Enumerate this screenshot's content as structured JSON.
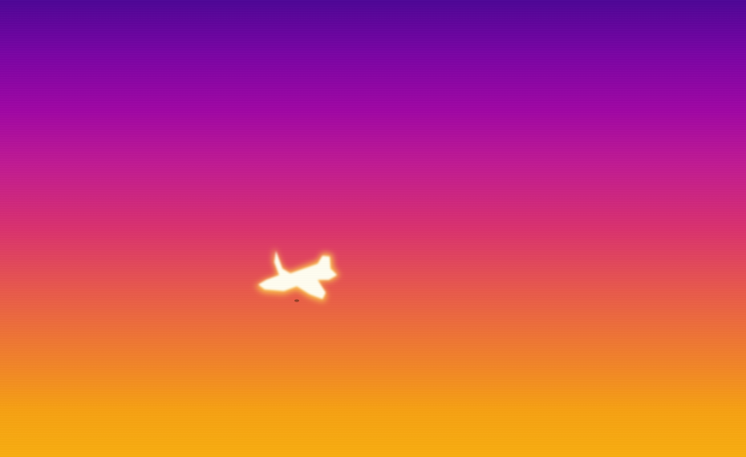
{
  "scene": {
    "subject_icon": "airplane-icon",
    "palette": [
      "#4d0596",
      "#9f06a4",
      "#d9316e",
      "#f07f2c",
      "#f8ad10"
    ],
    "hotspot_colors": [
      "#ffffff",
      "#fff4b0",
      "#ffd24a"
    ]
  }
}
